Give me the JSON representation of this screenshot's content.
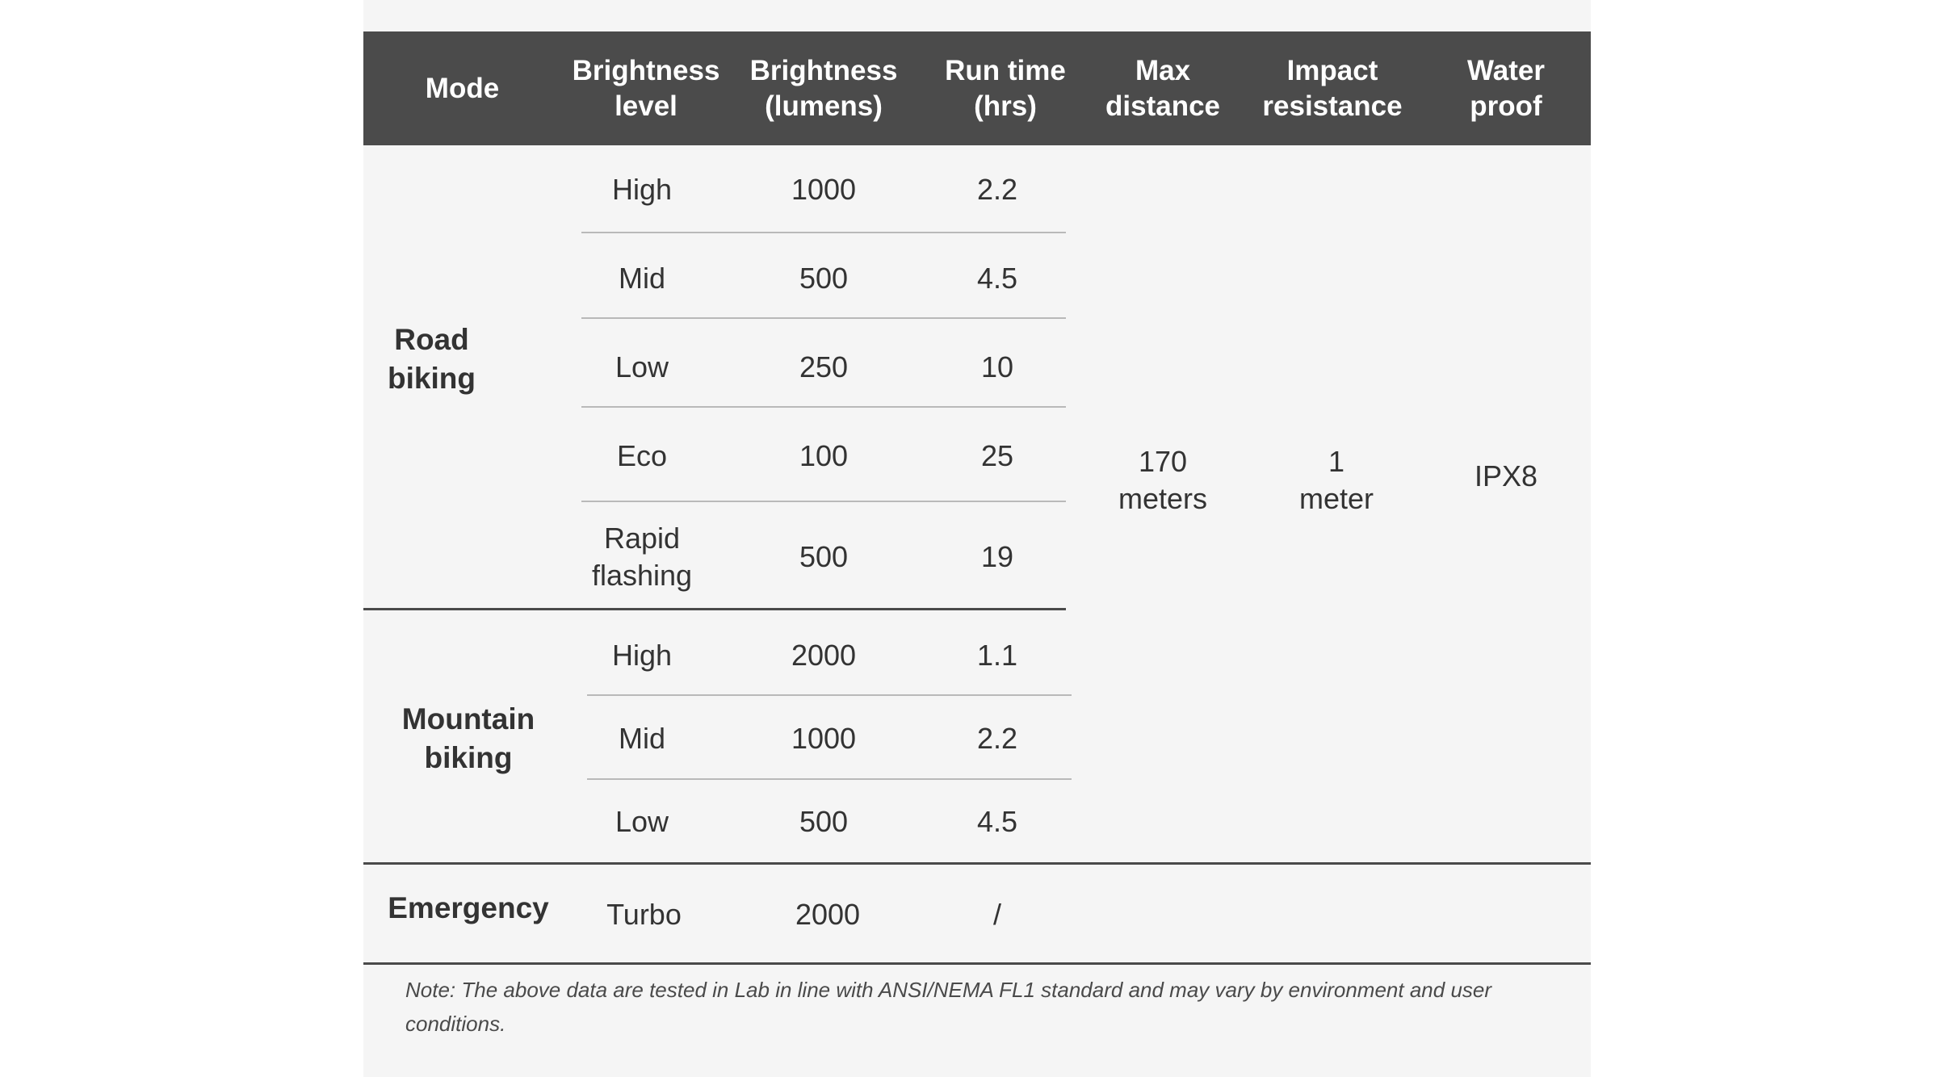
{
  "table": {
    "headers": [
      "Mode",
      "Brightness\nlevel",
      "Brightness\n(lumens)",
      "Run time\n(hrs)",
      "Max\ndistance",
      "Impact\nresistance",
      "Water\nproof"
    ],
    "groups": [
      {
        "mode": "Road\nbiking",
        "rows": [
          {
            "level": "High",
            "lumens": "1000",
            "runtime": "2.2"
          },
          {
            "level": "Mid",
            "lumens": "500",
            "runtime": "4.5"
          },
          {
            "level": "Low",
            "lumens": "250",
            "runtime": "10"
          },
          {
            "level": "Eco",
            "lumens": "100",
            "runtime": "25"
          },
          {
            "level": "Rapid\nflashing",
            "lumens": "500",
            "runtime": "19"
          }
        ]
      },
      {
        "mode": "Mountain\nbiking",
        "rows": [
          {
            "level": "High",
            "lumens": "2000",
            "runtime": "1.1"
          },
          {
            "level": "Mid",
            "lumens": "1000",
            "runtime": "2.2"
          },
          {
            "level": "Low",
            "lumens": "500",
            "runtime": "4.5"
          }
        ]
      },
      {
        "mode": "Emergency",
        "rows": [
          {
            "level": "Turbo",
            "lumens": "2000",
            "runtime": "/"
          }
        ]
      }
    ],
    "max_distance": "170\nmeters",
    "impact_resistance": "1\nmeter",
    "water_proof": "IPX8"
  },
  "note": "Note: The above data are tested in Lab in line with ANSI/NEMA FL1 standard and may vary by environment and user conditions."
}
